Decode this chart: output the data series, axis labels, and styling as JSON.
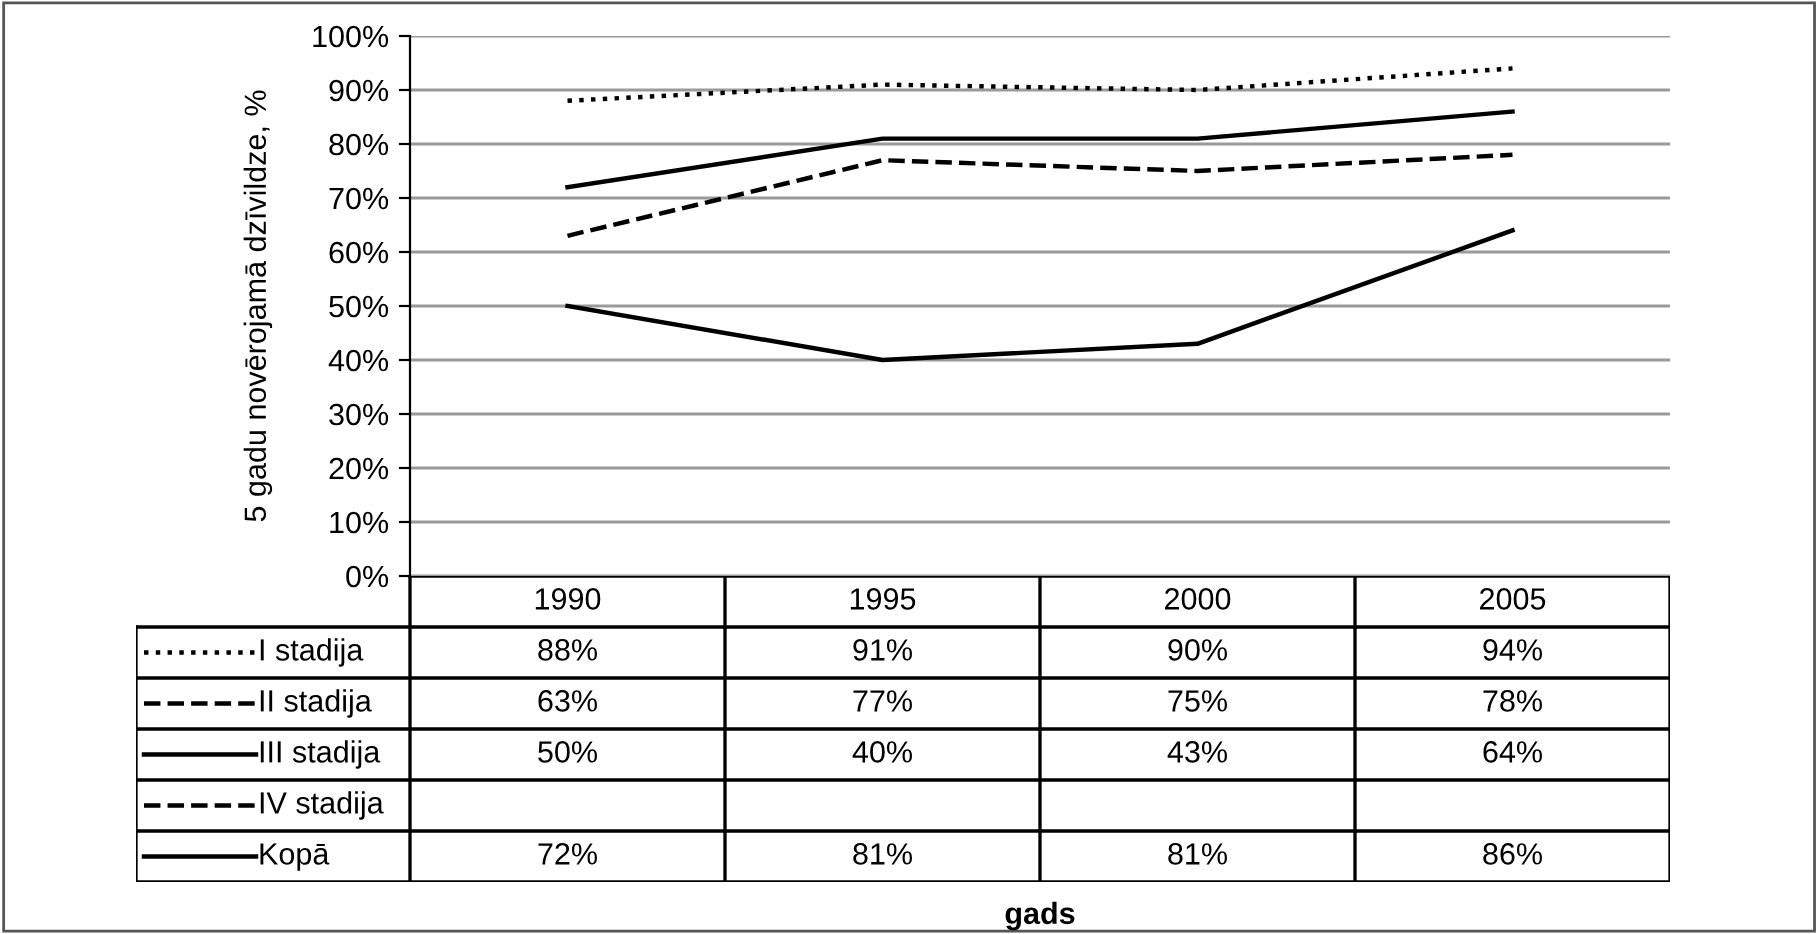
{
  "chart_data": {
    "type": "line",
    "ylabel": "5 gadu novērojamā dzīvildze, %",
    "annotations": [
      "gads"
    ],
    "categories": [
      "1990",
      "1995",
      "2000",
      "2005"
    ],
    "series": [
      {
        "name": "I stadija",
        "color": "#000000",
        "line_style": "dotted",
        "values": [
          88,
          91,
          90,
          94
        ],
        "value_labels": [
          "88%",
          "91%",
          "90%",
          "94%"
        ]
      },
      {
        "name": "II stadija",
        "color": "#000000",
        "line_style": "dashed",
        "values": [
          63,
          77,
          75,
          78
        ],
        "value_labels": [
          "63%",
          "77%",
          "75%",
          "78%"
        ]
      },
      {
        "name": "III stadija",
        "color": "#000000",
        "line_style": "solid",
        "values": [
          50,
          40,
          43,
          64
        ],
        "value_labels": [
          "50%",
          "40%",
          "43%",
          "64%"
        ]
      },
      {
        "name": "IV stadija",
        "color": "#000000",
        "line_style": "dashed",
        "values": [
          null,
          null,
          null,
          null
        ]
      },
      {
        "name": "Kopā",
        "color": "#000000",
        "line_style": "solid",
        "values": [
          72,
          81,
          81,
          86
        ],
        "value_labels": [
          "72%",
          "81%",
          "81%",
          "86%"
        ]
      }
    ],
    "ylim": [
      0,
      100
    ],
    "yticks": [
      {
        "value": 0,
        "label": "0%"
      },
      {
        "value": 10,
        "label": "10%"
      },
      {
        "value": 20,
        "label": "20%"
      },
      {
        "value": 30,
        "label": "30%"
      },
      {
        "value": 40,
        "label": "40%"
      },
      {
        "value": 50,
        "label": "50%"
      },
      {
        "value": 60,
        "label": "60%"
      },
      {
        "value": 70,
        "label": "70%"
      },
      {
        "value": 80,
        "label": "80%"
      },
      {
        "value": 90,
        "label": "90%"
      },
      {
        "value": 100,
        "label": "100%"
      }
    ],
    "grid": "y",
    "legend": "bottom",
    "marker": "none"
  }
}
